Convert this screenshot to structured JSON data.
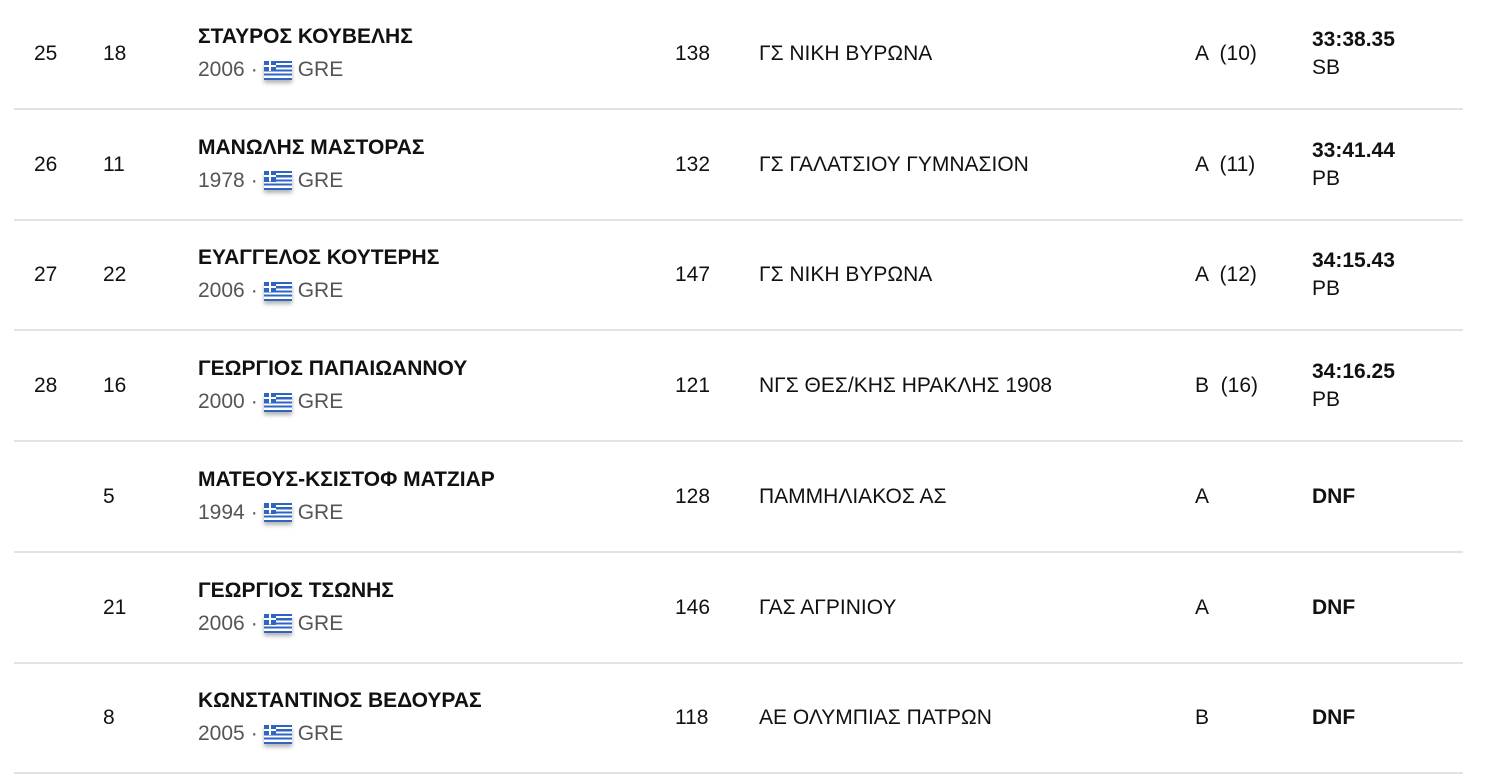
{
  "rows": [
    {
      "rank": "25",
      "bib": "18",
      "name": "ΣΤΑΥΡΟΣ ΚΟΥΒΕΛΗΣ",
      "year": "2006",
      "country": "GRE",
      "number": "138",
      "club": "ΓΣ ΝΙΚΗ ΒΥΡΩΝΑ",
      "category": "A  (10)",
      "result": "33:38.35",
      "note": "SB"
    },
    {
      "rank": "26",
      "bib": "11",
      "name": "ΜΑΝΩΛΗΣ ΜΑΣΤΟΡΑΣ",
      "year": "1978",
      "country": "GRE",
      "number": "132",
      "club": "ΓΣ ΓΑΛΑΤΣΙΟΥ ΓΥΜΝΑΣΙΟΝ",
      "category": "A  (11)",
      "result": "33:41.44",
      "note": "PB"
    },
    {
      "rank": "27",
      "bib": "22",
      "name": "ΕΥΑΓΓΕΛΟΣ ΚΟΥΤΕΡΗΣ",
      "year": "2006",
      "country": "GRE",
      "number": "147",
      "club": "ΓΣ ΝΙΚΗ ΒΥΡΩΝΑ",
      "category": "A  (12)",
      "result": "34:15.43",
      "note": "PB"
    },
    {
      "rank": "28",
      "bib": "16",
      "name": "ΓΕΩΡΓΙΟΣ ΠΑΠΑΙΩΑΝΝΟΥ",
      "year": "2000",
      "country": "GRE",
      "number": "121",
      "club": "ΝΓΣ ΘΕΣ/ΚΗΣ ΗΡΑΚΛΗΣ 1908",
      "category": "B  (16)",
      "result": "34:16.25",
      "note": "PB"
    },
    {
      "rank": "",
      "bib": "5",
      "name": "ΜΑΤΕΟΥΣ-ΚΣΙΣΤΟΦ ΜΑΤΖΙΑΡ",
      "year": "1994",
      "country": "GRE",
      "number": "128",
      "club": "ΠΑΜΜΗΛΙΑΚΟΣ ΑΣ",
      "category": "A",
      "result": "DNF",
      "note": ""
    },
    {
      "rank": "",
      "bib": "21",
      "name": "ΓΕΩΡΓΙΟΣ ΤΣΩΝΗΣ",
      "year": "2006",
      "country": "GRE",
      "number": "146",
      "club": "ΓΑΣ ΑΓΡΙΝΙΟΥ",
      "category": "A",
      "result": "DNF",
      "note": ""
    },
    {
      "rank": "",
      "bib": "8",
      "name": "ΚΩΝΣΤΑΝΤΙΝΟΣ ΒΕΔΟΥΡΑΣ",
      "year": "2005",
      "country": "GRE",
      "number": "118",
      "club": "ΑΕ ΟΛΥΜΠΙΑΣ ΠΑΤΡΩΝ",
      "category": "B",
      "result": "DNF",
      "note": ""
    }
  ],
  "separator": "·",
  "flag_icon": "greece-flag-icon"
}
